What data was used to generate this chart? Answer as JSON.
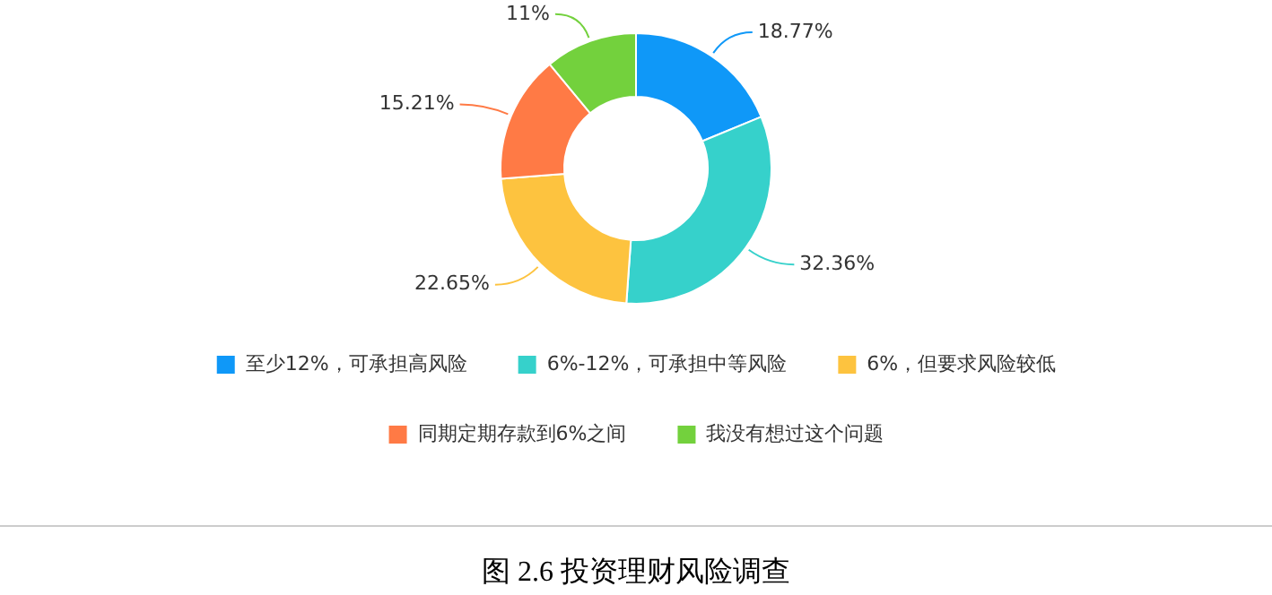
{
  "chart_data": {
    "type": "donut",
    "categories": [
      "至少12%，可承担高风险",
      "6%-12%，可承担中等风险",
      "6%，但要求风险较低",
      "同期定期存款到6%之间",
      "我没有想过这个问题"
    ],
    "values": [
      18.77,
      32.36,
      22.65,
      15.21,
      11
    ],
    "value_labels": [
      "18.77%",
      "32.36%",
      "22.65%",
      "15.21%",
      "11%"
    ],
    "colors": [
      "#0f98f8",
      "#36d1cb",
      "#fdc33f",
      "#ff7a45",
      "#73d13d"
    ],
    "legend": "bottom",
    "annotations": [
      "图 2.6 投资理财风险调查"
    ]
  }
}
